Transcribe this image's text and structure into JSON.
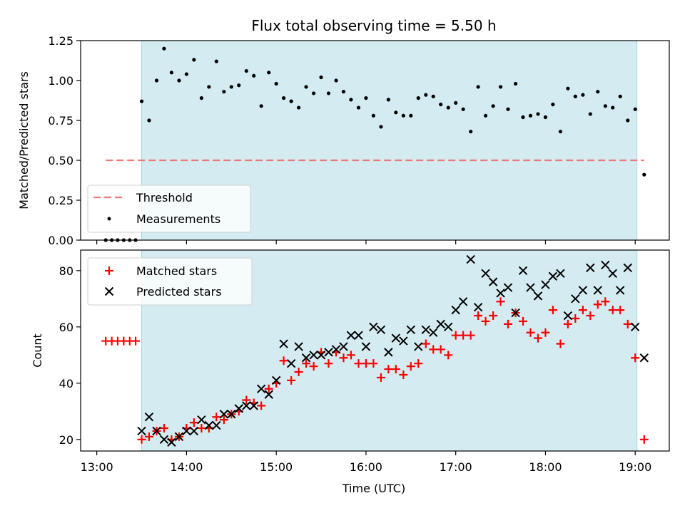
{
  "chart_data": {
    "title": "Flux total observing time = 5.50 h",
    "xlabel": "Time (UTC)",
    "x_ticks": [
      "13:00",
      "14:00",
      "15:00",
      "16:00",
      "17:00",
      "18:00",
      "19:00"
    ],
    "x_tick_hours": [
      13,
      14,
      15,
      16,
      17,
      18,
      19
    ],
    "xlim_hours": [
      12.82,
      19.38
    ],
    "shaded_span_hours": [
      13.5,
      19.02
    ],
    "colors": {
      "shade": "#d3ebf1",
      "threshold": "#f07878",
      "matched": "#ff0000",
      "predicted": "#000000",
      "measurement": "#000000"
    },
    "panels": [
      {
        "id": "top",
        "type": "scatter",
        "ylabel": "Matched/Predicted stars",
        "ylim": [
          0,
          1.25
        ],
        "y_ticks": [
          "0.00",
          "0.25",
          "0.50",
          "0.75",
          "1.00",
          "1.25"
        ],
        "y_tick_values": [
          0,
          0.25,
          0.5,
          0.75,
          1.0,
          1.25
        ],
        "threshold": {
          "name": "Threshold",
          "value": 0.5,
          "x_range_hours": [
            13.1,
            19.1
          ]
        },
        "series": [
          {
            "name": "Measurements",
            "marker": "dot",
            "points": [
              [
                13.1,
                0
              ],
              [
                13.167,
                0
              ],
              [
                13.233,
                0
              ],
              [
                13.3,
                0
              ],
              [
                13.367,
                0
              ],
              [
                13.433,
                0
              ],
              [
                13.5,
                0.87
              ],
              [
                13.583,
                0.75
              ],
              [
                13.667,
                1.0
              ],
              [
                13.75,
                1.2
              ],
              [
                13.833,
                1.05
              ],
              [
                13.917,
                1.0
              ],
              [
                14.0,
                1.04
              ],
              [
                14.083,
                1.13
              ],
              [
                14.167,
                0.89
              ],
              [
                14.25,
                0.96
              ],
              [
                14.333,
                1.12
              ],
              [
                14.417,
                0.93
              ],
              [
                14.5,
                0.96
              ],
              [
                14.583,
                0.97
              ],
              [
                14.667,
                1.06
              ],
              [
                14.75,
                1.03
              ],
              [
                14.833,
                0.84
              ],
              [
                14.917,
                1.05
              ],
              [
                15.0,
                0.98
              ],
              [
                15.083,
                0.89
              ],
              [
                15.167,
                0.87
              ],
              [
                15.25,
                0.83
              ],
              [
                15.333,
                0.96
              ],
              [
                15.417,
                0.92
              ],
              [
                15.5,
                1.02
              ],
              [
                15.583,
                0.92
              ],
              [
                15.667,
                1.0
              ],
              [
                15.75,
                0.93
              ],
              [
                15.833,
                0.88
              ],
              [
                15.917,
                0.83
              ],
              [
                16.0,
                0.89
              ],
              [
                16.083,
                0.78
              ],
              [
                16.167,
                0.71
              ],
              [
                16.25,
                0.88
              ],
              [
                16.333,
                0.8
              ],
              [
                16.417,
                0.78
              ],
              [
                16.5,
                0.78
              ],
              [
                16.583,
                0.89
              ],
              [
                16.667,
                0.91
              ],
              [
                16.75,
                0.9
              ],
              [
                16.833,
                0.85
              ],
              [
                16.917,
                0.83
              ],
              [
                17.0,
                0.86
              ],
              [
                17.083,
                0.82
              ],
              [
                17.167,
                0.68
              ],
              [
                17.25,
                0.96
              ],
              [
                17.333,
                0.78
              ],
              [
                17.417,
                0.84
              ],
              [
                17.5,
                0.96
              ],
              [
                17.583,
                0.82
              ],
              [
                17.667,
                0.98
              ],
              [
                17.75,
                0.77
              ],
              [
                17.833,
                0.78
              ],
              [
                17.917,
                0.79
              ],
              [
                18.0,
                0.77
              ],
              [
                18.083,
                0.85
              ],
              [
                18.167,
                0.68
              ],
              [
                18.25,
                0.95
              ],
              [
                18.333,
                0.9
              ],
              [
                18.417,
                0.91
              ],
              [
                18.5,
                0.79
              ],
              [
                18.583,
                0.93
              ],
              [
                18.667,
                0.84
              ],
              [
                18.75,
                0.83
              ],
              [
                18.833,
                0.9
              ],
              [
                18.917,
                0.75
              ],
              [
                19.0,
                0.82
              ],
              [
                19.1,
                0.41
              ]
            ]
          }
        ],
        "legend": {
          "placement": "lower-left",
          "entries": [
            "Threshold",
            "Measurements"
          ]
        }
      },
      {
        "id": "bottom",
        "type": "scatter",
        "ylabel": "Count",
        "ylim": [
          15.9,
          87.3
        ],
        "y_ticks": [
          "20",
          "40",
          "60",
          "80"
        ],
        "y_tick_values": [
          20,
          40,
          60,
          80
        ],
        "series": [
          {
            "name": "Matched stars",
            "marker": "plus",
            "points": [
              [
                13.1,
                55
              ],
              [
                13.167,
                55
              ],
              [
                13.233,
                55
              ],
              [
                13.3,
                55
              ],
              [
                13.367,
                55
              ],
              [
                13.433,
                55
              ],
              [
                13.5,
                20
              ],
              [
                13.583,
                21
              ],
              [
                13.667,
                23
              ],
              [
                13.75,
                24
              ],
              [
                13.833,
                20
              ],
              [
                13.917,
                21
              ],
              [
                14.0,
                24
              ],
              [
                14.083,
                26
              ],
              [
                14.167,
                24
              ],
              [
                14.25,
                24
              ],
              [
                14.333,
                28
              ],
              [
                14.417,
                27
              ],
              [
                14.5,
                29
              ],
              [
                14.583,
                30
              ],
              [
                14.667,
                34
              ],
              [
                14.75,
                33
              ],
              [
                14.833,
                32
              ],
              [
                14.917,
                38
              ],
              [
                15.0,
                40
              ],
              [
                15.083,
                48
              ],
              [
                15.167,
                41
              ],
              [
                15.25,
                44
              ],
              [
                15.333,
                47
              ],
              [
                15.417,
                46
              ],
              [
                15.5,
                51
              ],
              [
                15.583,
                47
              ],
              [
                15.667,
                51
              ],
              [
                15.75,
                49
              ],
              [
                15.833,
                50
              ],
              [
                15.917,
                47
              ],
              [
                16.0,
                47
              ],
              [
                16.083,
                47
              ],
              [
                16.167,
                42
              ],
              [
                16.25,
                45
              ],
              [
                16.333,
                45
              ],
              [
                16.417,
                43
              ],
              [
                16.5,
                46
              ],
              [
                16.583,
                47
              ],
              [
                16.667,
                54
              ],
              [
                16.75,
                52
              ],
              [
                16.833,
                52
              ],
              [
                16.917,
                50
              ],
              [
                17.0,
                57
              ],
              [
                17.083,
                57
              ],
              [
                17.167,
                57
              ],
              [
                17.25,
                64
              ],
              [
                17.333,
                62
              ],
              [
                17.417,
                64
              ],
              [
                17.5,
                69
              ],
              [
                17.583,
                61
              ],
              [
                17.667,
                65
              ],
              [
                17.75,
                62
              ],
              [
                17.833,
                58
              ],
              [
                17.917,
                56
              ],
              [
                18.0,
                58
              ],
              [
                18.083,
                66
              ],
              [
                18.167,
                54
              ],
              [
                18.25,
                61
              ],
              [
                18.333,
                63
              ],
              [
                18.417,
                66
              ],
              [
                18.5,
                64
              ],
              [
                18.583,
                68
              ],
              [
                18.667,
                69
              ],
              [
                18.75,
                66
              ],
              [
                18.833,
                66
              ],
              [
                18.917,
                61
              ],
              [
                19.0,
                49
              ],
              [
                19.1,
                20
              ]
            ]
          },
          {
            "name": "Predicted stars",
            "marker": "x",
            "points": [
              [
                13.5,
                23
              ],
              [
                13.583,
                28
              ],
              [
                13.667,
                23
              ],
              [
                13.75,
                20
              ],
              [
                13.833,
                19
              ],
              [
                13.917,
                21
              ],
              [
                14.0,
                23
              ],
              [
                14.083,
                23
              ],
              [
                14.167,
                27
              ],
              [
                14.25,
                25
              ],
              [
                14.333,
                25
              ],
              [
                14.417,
                29
              ],
              [
                14.5,
                29
              ],
              [
                14.583,
                31
              ],
              [
                14.667,
                32
              ],
              [
                14.75,
                32
              ],
              [
                14.833,
                38
              ],
              [
                14.917,
                36
              ],
              [
                15.0,
                41
              ],
              [
                15.083,
                54
              ],
              [
                15.167,
                47
              ],
              [
                15.25,
                53
              ],
              [
                15.333,
                49
              ],
              [
                15.417,
                50
              ],
              [
                15.5,
                50
              ],
              [
                15.583,
                51
              ],
              [
                15.667,
                52
              ],
              [
                15.75,
                53
              ],
              [
                15.833,
                57
              ],
              [
                15.917,
                57
              ],
              [
                16.0,
                53
              ],
              [
                16.083,
                60
              ],
              [
                16.167,
                59
              ],
              [
                16.25,
                51
              ],
              [
                16.333,
                56
              ],
              [
                16.417,
                55
              ],
              [
                16.5,
                59
              ],
              [
                16.583,
                53
              ],
              [
                16.667,
                59
              ],
              [
                16.75,
                58
              ],
              [
                16.833,
                61
              ],
              [
                16.917,
                60
              ],
              [
                17.0,
                66
              ],
              [
                17.083,
                69
              ],
              [
                17.167,
                84
              ],
              [
                17.25,
                67
              ],
              [
                17.333,
                79
              ],
              [
                17.417,
                76
              ],
              [
                17.5,
                72
              ],
              [
                17.583,
                74
              ],
              [
                17.667,
                65
              ],
              [
                17.75,
                80
              ],
              [
                17.833,
                74
              ],
              [
                17.917,
                71
              ],
              [
                18.0,
                75
              ],
              [
                18.083,
                78
              ],
              [
                18.167,
                79
              ],
              [
                18.25,
                64
              ],
              [
                18.333,
                70
              ],
              [
                18.417,
                73
              ],
              [
                18.5,
                81
              ],
              [
                18.583,
                73
              ],
              [
                18.667,
                82
              ],
              [
                18.75,
                79
              ],
              [
                18.833,
                73
              ],
              [
                18.917,
                81
              ],
              [
                19.0,
                60
              ],
              [
                19.1,
                49
              ]
            ]
          }
        ],
        "legend": {
          "placement": "upper-left",
          "entries": [
            "Matched stars",
            "Predicted stars"
          ]
        }
      }
    ]
  }
}
